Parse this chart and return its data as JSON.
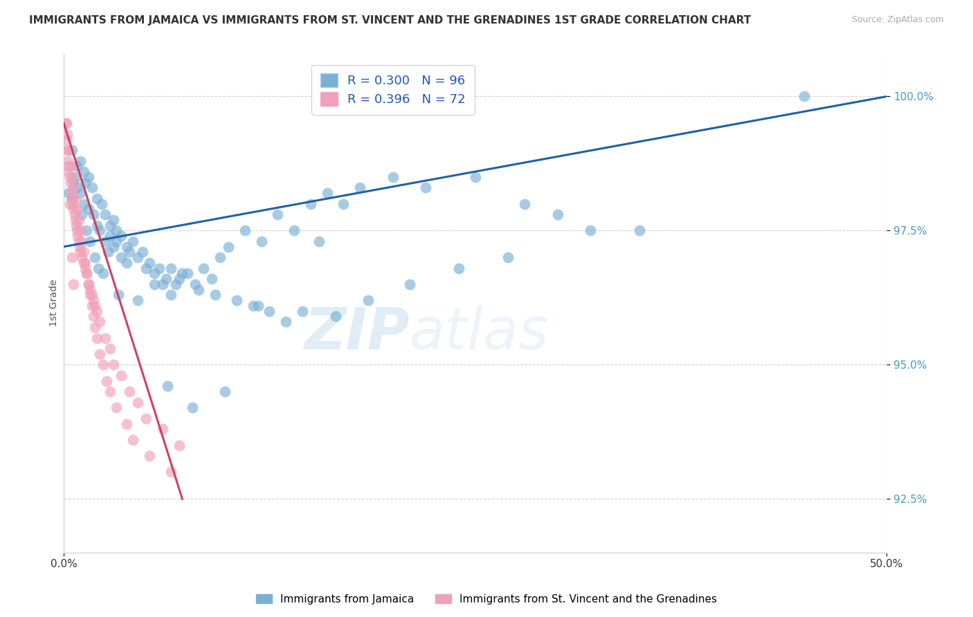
{
  "title": "IMMIGRANTS FROM JAMAICA VS IMMIGRANTS FROM ST. VINCENT AND THE GRENADINES 1ST GRADE CORRELATION CHART",
  "source": "Source: ZipAtlas.com",
  "ylabel": "1st Grade",
  "xmin": 0.0,
  "xmax": 50.0,
  "ymin": 91.5,
  "ymax": 100.8,
  "yticks": [
    92.5,
    95.0,
    97.5,
    100.0
  ],
  "ytick_labels": [
    "92.5%",
    "95.0%",
    "97.5%",
    "100.0%"
  ],
  "xtick_labels": [
    "0.0%",
    "50.0%"
  ],
  "blue_color": "#7ab0d4",
  "pink_color": "#f0a0b8",
  "blue_line_color": "#2060a8",
  "pink_line_color": "#d04060",
  "legend_R_blue": "R = 0.300",
  "legend_N_blue": "N = 96",
  "legend_R_pink": "R = 0.396",
  "legend_N_pink": "N = 72",
  "legend_label_blue": "Immigrants from Jamaica",
  "legend_label_pink": "Immigrants from St. Vincent and the Grenadines",
  "watermark_zip": "ZIP",
  "watermark_atlas": "atlas",
  "blue_scatter_x": [
    0.3,
    0.5,
    0.7,
    0.8,
    1.0,
    1.2,
    1.5,
    1.8,
    2.0,
    2.2,
    2.5,
    2.8,
    3.0,
    3.2,
    3.5,
    3.8,
    4.0,
    4.5,
    5.0,
    5.5,
    6.0,
    6.5,
    7.0,
    7.5,
    8.0,
    8.5,
    9.0,
    9.5,
    10.0,
    11.0,
    12.0,
    13.0,
    14.0,
    15.0,
    16.0,
    17.0,
    18.0,
    20.0,
    22.0,
    25.0,
    28.0,
    30.0,
    32.0,
    35.0,
    1.0,
    1.2,
    1.3,
    1.5,
    1.7,
    2.0,
    2.3,
    2.5,
    2.8,
    3.0,
    3.2,
    3.5,
    3.8,
    4.2,
    4.8,
    5.2,
    5.8,
    6.2,
    6.8,
    7.2,
    8.2,
    9.2,
    10.5,
    11.5,
    12.5,
    13.5,
    14.5,
    16.5,
    18.5,
    21.0,
    24.0,
    27.0,
    5.5,
    6.5,
    45.0,
    0.5,
    0.6,
    0.8,
    1.1,
    1.4,
    1.6,
    1.9,
    2.1,
    2.4,
    2.7,
    3.3,
    4.5,
    6.3,
    7.8,
    9.8,
    11.8,
    15.5
  ],
  "blue_scatter_y": [
    98.2,
    99.0,
    98.5,
    98.3,
    98.2,
    98.0,
    97.9,
    97.8,
    97.6,
    97.5,
    97.3,
    97.4,
    97.2,
    97.3,
    97.0,
    96.9,
    97.1,
    97.0,
    96.8,
    96.7,
    96.5,
    96.8,
    96.6,
    96.7,
    96.5,
    96.8,
    96.6,
    97.0,
    97.2,
    97.5,
    97.3,
    97.8,
    97.5,
    98.0,
    98.2,
    98.0,
    98.3,
    98.5,
    98.3,
    98.5,
    98.0,
    97.8,
    97.5,
    97.5,
    98.8,
    98.6,
    98.4,
    98.5,
    98.3,
    98.1,
    98.0,
    97.8,
    97.6,
    97.7,
    97.5,
    97.4,
    97.2,
    97.3,
    97.1,
    96.9,
    96.8,
    96.6,
    96.5,
    96.7,
    96.4,
    96.3,
    96.2,
    96.1,
    96.0,
    95.8,
    96.0,
    95.9,
    96.2,
    96.5,
    96.8,
    97.0,
    96.5,
    96.3,
    100.0,
    98.1,
    98.4,
    98.7,
    97.8,
    97.5,
    97.3,
    97.0,
    96.8,
    96.7,
    97.1,
    96.3,
    96.2,
    94.6,
    94.2,
    94.5,
    96.1,
    97.3
  ],
  "pink_scatter_x": [
    0.1,
    0.15,
    0.2,
    0.25,
    0.3,
    0.35,
    0.4,
    0.45,
    0.5,
    0.55,
    0.6,
    0.65,
    0.7,
    0.75,
    0.8,
    0.85,
    0.9,
    0.95,
    1.0,
    1.1,
    1.2,
    1.3,
    1.4,
    1.5,
    1.6,
    1.7,
    1.8,
    1.9,
    2.0,
    2.2,
    2.5,
    2.8,
    3.0,
    3.5,
    4.0,
    4.5,
    5.0,
    6.0,
    7.0,
    0.2,
    0.3,
    0.4,
    0.5,
    0.6,
    0.7,
    0.8,
    0.9,
    1.0,
    1.1,
    1.2,
    1.3,
    1.4,
    1.5,
    1.6,
    1.7,
    1.8,
    1.9,
    2.0,
    2.2,
    2.4,
    2.6,
    2.8,
    3.2,
    3.8,
    4.2,
    5.2,
    6.5,
    0.15,
    0.25,
    0.35,
    0.5,
    0.6
  ],
  "pink_scatter_y": [
    99.5,
    99.2,
    99.0,
    98.8,
    98.7,
    98.5,
    98.4,
    98.2,
    98.1,
    98.0,
    97.9,
    97.8,
    97.7,
    97.6,
    97.5,
    97.4,
    97.3,
    97.2,
    97.1,
    97.0,
    96.9,
    96.8,
    96.7,
    96.5,
    96.4,
    96.3,
    96.2,
    96.1,
    96.0,
    95.8,
    95.5,
    95.3,
    95.0,
    94.8,
    94.5,
    94.3,
    94.0,
    93.8,
    93.5,
    99.3,
    99.0,
    98.7,
    98.5,
    98.3,
    98.1,
    97.9,
    97.7,
    97.5,
    97.3,
    97.1,
    96.9,
    96.7,
    96.5,
    96.3,
    96.1,
    95.9,
    95.7,
    95.5,
    95.2,
    95.0,
    94.7,
    94.5,
    94.2,
    93.9,
    93.6,
    93.3,
    93.0,
    99.5,
    98.6,
    98.0,
    97.0,
    96.5
  ],
  "blue_trend_x": [
    0.0,
    50.0
  ],
  "blue_trend_y": [
    97.2,
    100.0
  ],
  "pink_trend_x": [
    0.0,
    7.2
  ],
  "pink_trend_y": [
    99.5,
    92.5
  ]
}
